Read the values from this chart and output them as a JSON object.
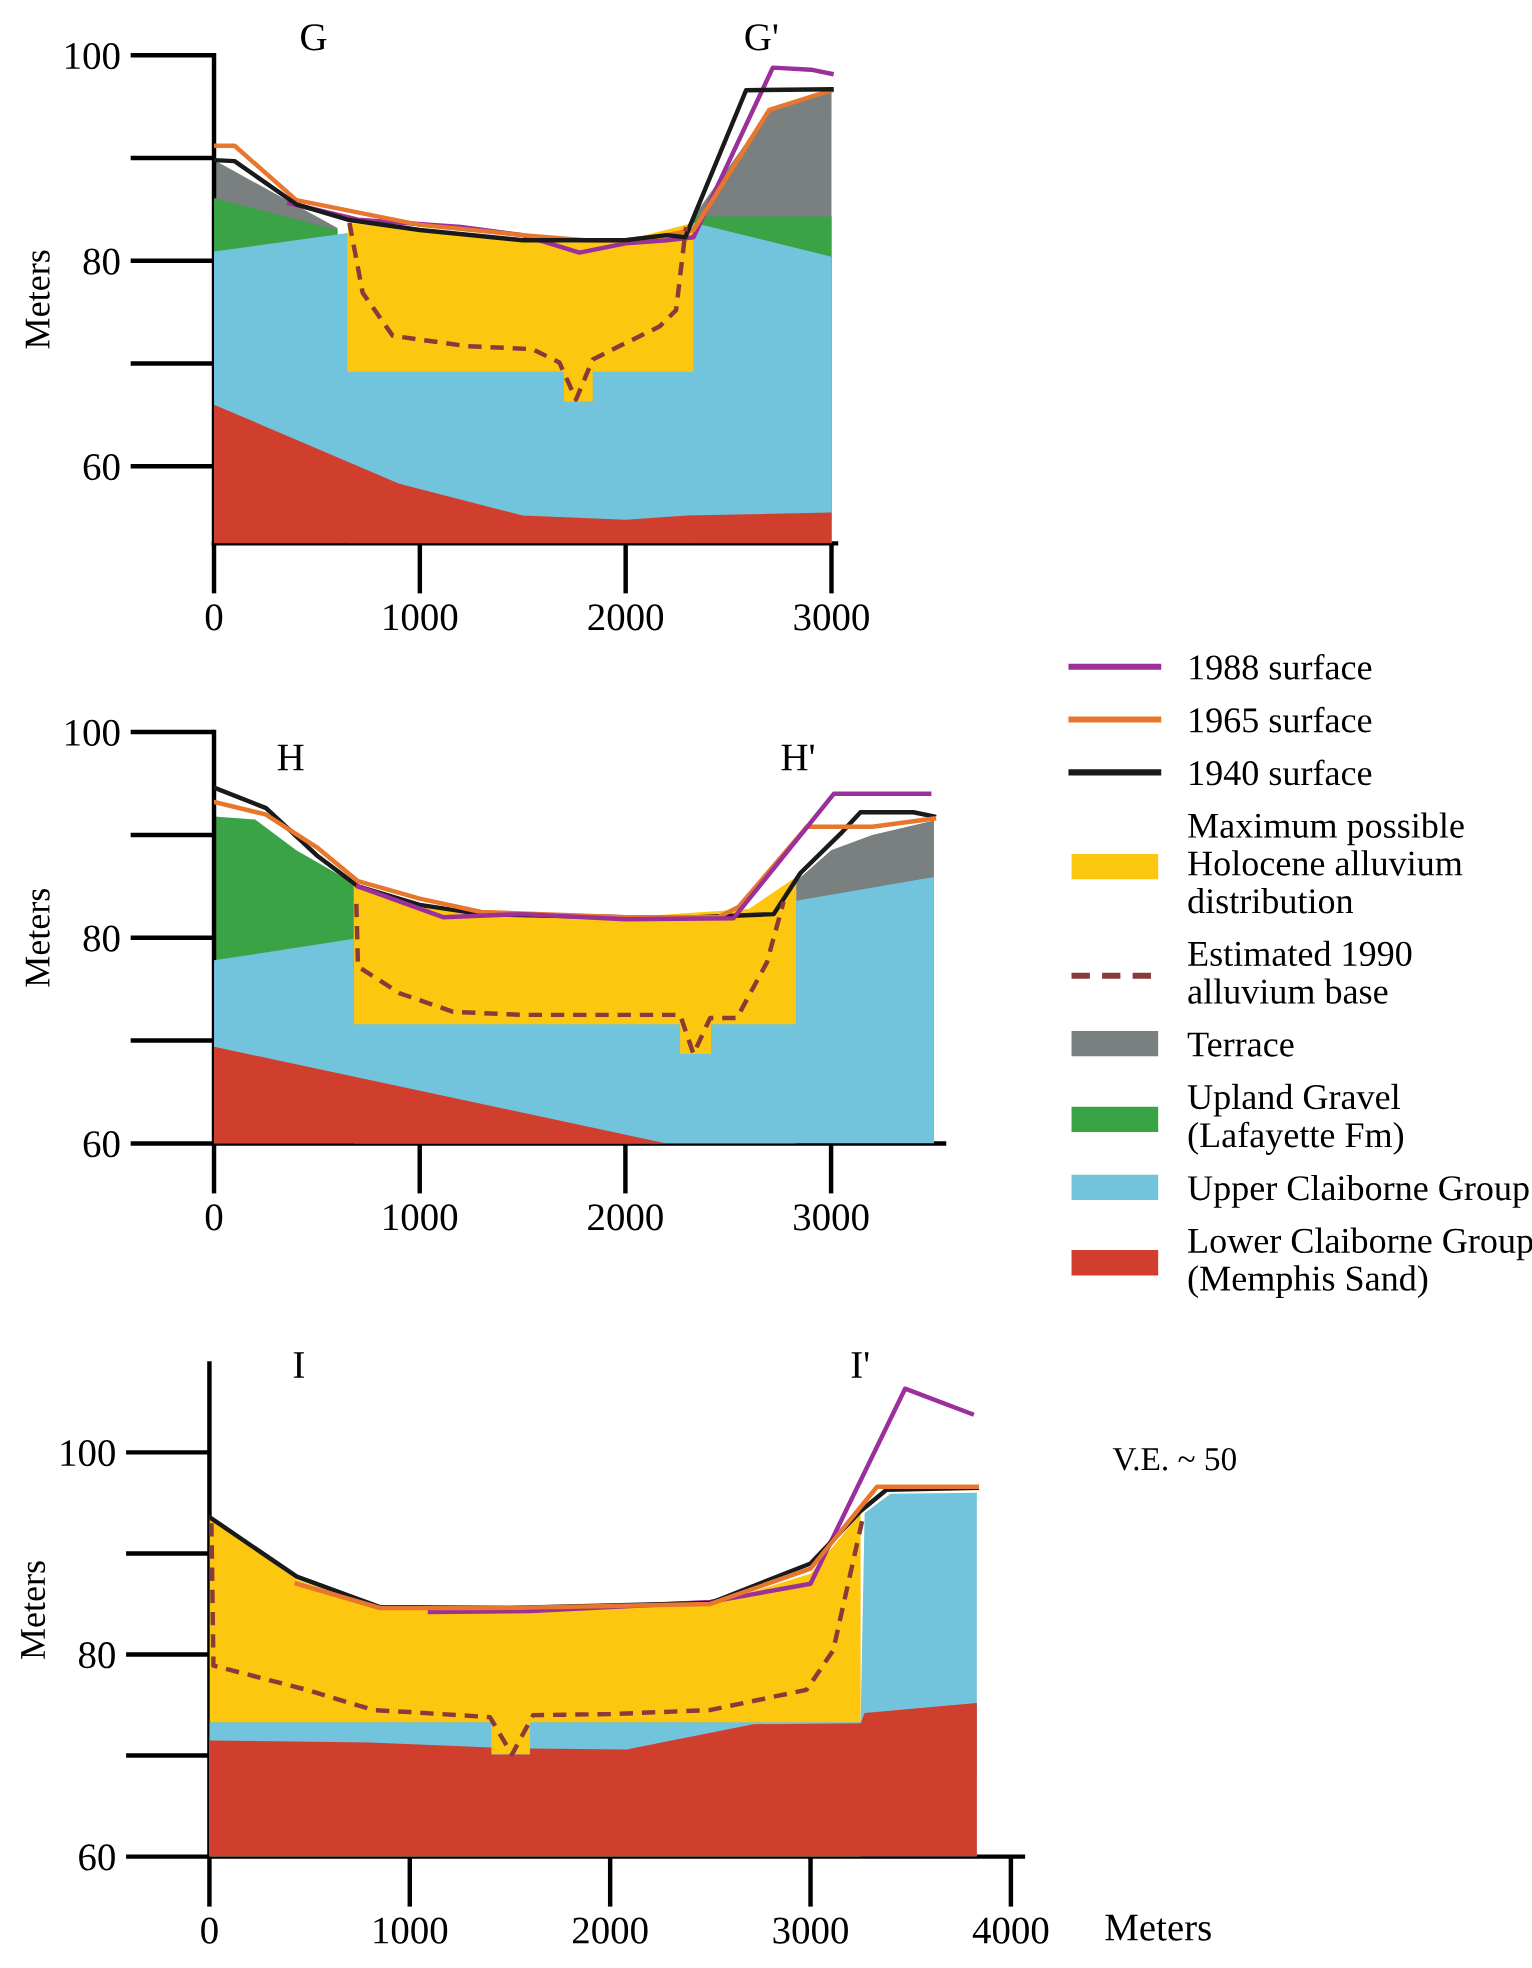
{
  "chart_data": [
    {
      "type": "area",
      "ylabel": "Meters",
      "xlim": [
        0,
        3022
      ],
      "ylim": [
        52.5,
        100
      ],
      "xticks": [
        0,
        1000,
        2000,
        3000
      ],
      "yticks": [
        60,
        80,
        100
      ],
      "grid": false,
      "legend": false,
      "annotations": [
        "G",
        "G'"
      ],
      "series": [
        {
          "type": "line",
          "color": "#9b2f9b",
          "x": [
            366,
            700,
            1200,
            1500,
            1775,
            2000,
            2200,
            2330,
            2715,
            2900,
            3000
          ],
          "values": [
            85.6,
            84,
            83.3,
            82.5,
            80.8,
            81.7,
            82,
            82.3,
            98.8,
            98.6,
            98.2
          ]
        },
        {
          "type": "line",
          "color": "#e8772e",
          "x": [
            0,
            100,
            400,
            1000,
            1500,
            1800,
            2000,
            2200,
            2330,
            2698,
            3000
          ],
          "values": [
            91.2,
            91.2,
            85.9,
            83.5,
            82.5,
            82,
            82,
            82.5,
            83,
            94.7,
            96.6
          ]
        },
        {
          "type": "line",
          "color": "#1a1a1a",
          "x": [
            0,
            100,
            400,
            650,
            1000,
            1500,
            2000,
            2200,
            2290,
            2585,
            3000
          ],
          "values": [
            89.8,
            89.7,
            85.5,
            84,
            83,
            82,
            82,
            82.5,
            82.3,
            96.6,
            96.7
          ]
        },
        {
          "color": "#fdc60f",
          "x": [
            650,
            1000,
            1500,
            1700,
            1840,
            2000,
            2330
          ],
          "values": [
            83.7,
            83,
            82,
            81.8,
            81.8,
            82,
            83.7
          ]
        },
        {
          "type": "line",
          "color": "#8b3a3a",
          "line_style": "dashed",
          "x": [
            658,
            722,
            868,
            1225,
            1548,
            1678,
            1759,
            1840,
            1970,
            2164,
            2245,
            2293
          ],
          "values": [
            83.7,
            76.9,
            72.7,
            71.7,
            71.4,
            70.1,
            66.5,
            70.4,
            71.7,
            73.6,
            75.2,
            83.3
          ]
        },
        {
          "color": "#7a7f7f",
          "x": [
            0,
            600,
            1500,
            2330,
            2700,
            3000
          ],
          "values": [
            89.8,
            83.2,
            null,
            84.3,
            94.7,
            96.6
          ]
        },
        {
          "color": "#3aa346",
          "x": [
            0,
            600,
            1500,
            2330,
            3000
          ],
          "values": [
            86.1,
            83.0,
            null,
            84.3,
            84.3
          ]
        },
        {
          "color": "#72c3dc",
          "x": [
            0,
            650,
            650,
            1700,
            1700,
            1840,
            1840,
            2330,
            2330,
            3000
          ],
          "values": [
            80.9,
            82.7,
            69.2,
            69.2,
            66.3,
            66.3,
            69.2,
            69.2,
            83.7,
            80.4
          ]
        },
        {
          "color": "#d03f2e",
          "x": [
            0,
            900,
            1500,
            2000,
            2300,
            3000
          ],
          "values": [
            66.0,
            58.3,
            55.2,
            54.8,
            55.2,
            55.5
          ]
        }
      ]
    },
    {
      "type": "area",
      "ylabel": "Meters",
      "xlim": [
        0,
        3549
      ],
      "ylim": [
        60,
        100
      ],
      "xticks": [
        0,
        1000,
        2000,
        3000
      ],
      "yticks": [
        60,
        80,
        100
      ],
      "grid": false,
      "legend": "right",
      "annotations": [
        "H",
        "H'"
      ],
      "series": [
        {
          "name": "1988 surface",
          "type": "line",
          "color": "#9b2f9b",
          "x": [
            700,
            1113,
            1500,
            2000,
            2526,
            3013,
            3477
          ],
          "values": [
            85,
            82,
            82.3,
            81.8,
            81.9,
            94.0,
            94.0
          ]
        },
        {
          "name": "1965 surface",
          "type": "line",
          "color": "#e8772e",
          "x": [
            0,
            250,
            500,
            700,
            1000,
            1300,
            2000,
            2450,
            2550,
            2883,
            3200,
            3500
          ],
          "values": [
            93.2,
            92,
            88.8,
            85.5,
            83.8,
            82.5,
            82,
            82,
            83,
            90.8,
            90.8,
            91.6
          ]
        },
        {
          "name": "1940 surface",
          "type": "line",
          "color": "#1a1a1a",
          "x": [
            0,
            253,
            500,
            700,
            1000,
            1300,
            2000,
            2350,
            2721,
            2851,
            3045,
            3143,
            3400,
            3500
          ],
          "values": [
            94.6,
            92.6,
            88,
            85,
            83.2,
            82.3,
            82,
            82,
            82.3,
            86.3,
            90.1,
            92.2,
            92.2,
            91.8
          ]
        },
        {
          "name": "Maximum possible\nHolocene alluvium\ndistribution",
          "color": "#fdc60f",
          "x": [
            680,
            1000,
            1300,
            2000,
            2600,
            2830
          ],
          "values": [
            85.3,
            83.3,
            82.3,
            82,
            82.8,
            85.9
          ]
        },
        {
          "name": "Estimated 1990\nalluvium base",
          "type": "line",
          "color": "#8b3a3a",
          "line_style": "dashed",
          "x": [
            692,
            700,
            903,
            1162,
            1500,
            2266,
            2331,
            2412,
            2542,
            2688,
            2769
          ],
          "values": [
            83.3,
            77.2,
            74.6,
            72.8,
            72.5,
            72.5,
            68.7,
            72.2,
            72.2,
            77.6,
            83.5
          ]
        },
        {
          "name": "Terrace",
          "color": "#7a7f7f",
          "x": [
            2830,
            3000,
            3200,
            3500
          ],
          "values": [
            85.5,
            88.5,
            90,
            91.4
          ]
        },
        {
          "name": "Upland Gravel\n(Lafayette Fm)",
          "color": "#3aa346",
          "x": [
            0,
            200,
            400,
            680
          ],
          "values": [
            91.8,
            91.5,
            88.5,
            85.3
          ]
        },
        {
          "name": "Upper Claiborne Group",
          "color": "#72c3dc",
          "x": [
            0,
            680,
            680,
            2266,
            2266,
            2416,
            2416,
            2830,
            2830,
            3500
          ],
          "values": [
            77.8,
            79.9,
            71.6,
            71.6,
            68.7,
            68.7,
            71.6,
            71.6,
            83.6,
            85.9
          ]
        },
        {
          "name": "Lower Claiborne Group\n(Memphis Sand)",
          "color": "#d03f2e",
          "x": [
            0,
            2200,
            3500
          ],
          "values": [
            69.4,
            60,
            60
          ]
        }
      ]
    },
    {
      "type": "area",
      "ylabel": "Meters",
      "xlabel": "Meters",
      "xlim": [
        0,
        4060
      ],
      "ylim": [
        60,
        108.8
      ],
      "xticks": [
        0,
        1000,
        2000,
        3000,
        4000
      ],
      "yticks": [
        60,
        80,
        100
      ],
      "grid": false,
      "legend": false,
      "annotations": [
        "I",
        "I'",
        "V.E. ~ 50"
      ],
      "series": [
        {
          "type": "line",
          "color": "#9b2f9b",
          "x": [
            1101,
            1600,
            2500,
            3000,
            3472,
            3805
          ],
          "values": [
            84.2,
            84.3,
            85.2,
            87.0,
            106.3,
            103.8
          ]
        },
        {
          "type": "line",
          "color": "#e8772e",
          "x": [
            436,
            851,
            1500,
            2500,
            3000,
            3332,
            3830
          ],
          "values": [
            87,
            84.6,
            84.6,
            85,
            88.5,
            96.6,
            96.6
          ]
        },
        {
          "type": "line",
          "color": "#1a1a1a",
          "x": [
            0,
            436,
            851,
            1500,
            2500,
            3000,
            3250,
            3379,
            3830
          ],
          "values": [
            93.6,
            87.7,
            84.7,
            84.6,
            85.1,
            89.0,
            94.2,
            96.3,
            96.5
          ]
        },
        {
          "color": "#fdc60f",
          "x": [
            0,
            436,
            851,
            1500,
            2514,
            3000,
            3250
          ],
          "values": [
            93.6,
            87.4,
            84.6,
            84.5,
            85.0,
            88.0,
            94.0
          ]
        },
        {
          "type": "line",
          "color": "#8b3a3a",
          "line_style": "dashed",
          "x": [
            10,
            20,
            486,
            818,
            1000,
            1400,
            1510,
            1616,
            2000,
            2497,
            2980,
            3113,
            3262
          ],
          "values": [
            93,
            78.9,
            76.5,
            74.5,
            74.3,
            73.8,
            70.1,
            74.0,
            74.1,
            74.5,
            76.5,
            80.4,
            93.6
          ]
        },
        {
          "color": "#72c3dc",
          "x": [
            0,
            1407,
            1407,
            1600,
            1600,
            3250,
            3270,
            3400,
            3830
          ],
          "values": [
            73.3,
            73.3,
            70.1,
            70.1,
            73.3,
            73.3,
            94.0,
            95.9,
            96.0
          ]
        },
        {
          "color": "#d03f2e",
          "x": [
            0,
            800,
            1407,
            1407,
            1600,
            1600,
            2082,
            2714,
            3250,
            3270,
            3830
          ],
          "values": [
            71.5,
            71.3,
            70.8,
            70.1,
            70.1,
            70.7,
            70.6,
            73.1,
            73.2,
            74.2,
            75.2
          ]
        }
      ]
    }
  ]
}
